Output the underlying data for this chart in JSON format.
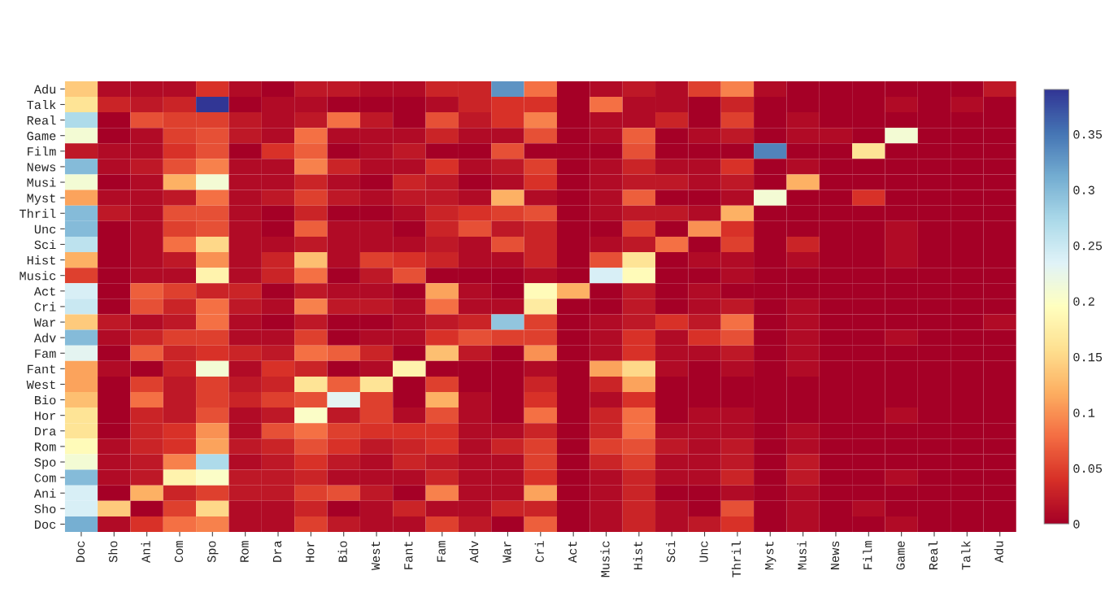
{
  "chart_data": {
    "type": "heatmap",
    "categories": [
      "Doc",
      "Sho",
      "Ani",
      "Com",
      "Spo",
      "Rom",
      "Dra",
      "Hor",
      "Bio",
      "West",
      "Fant",
      "Fam",
      "Adv",
      "War",
      "Cri",
      "Act",
      "Music",
      "Hist",
      "Sci",
      "Unc",
      "Thril",
      "Myst",
      "Musi",
      "News",
      "Film",
      "Game",
      "Real",
      "Talk",
      "Adu"
    ],
    "y_categories": [
      "Adu",
      "Talk",
      "Real",
      "Game",
      "Film",
      "News",
      "Musi",
      "Myst",
      "Thril",
      "Unc",
      "Sci",
      "Hist",
      "Music",
      "Act",
      "Cri",
      "War",
      "Adv",
      "Fam",
      "Fant",
      "West",
      "Bio",
      "Hor",
      "Dra",
      "Rom",
      "Spo",
      "Com",
      "Ani",
      "Sho",
      "Doc"
    ],
    "cells": [
      [
        0.14,
        0.01,
        0.01,
        0.01,
        0.04,
        0.01,
        0,
        0.02,
        0.02,
        0.01,
        0.01,
        0.03,
        0.03,
        0.33,
        0.08,
        0,
        0.01,
        0.02,
        0.01,
        0.05,
        0.09,
        0.01,
        0,
        0,
        0,
        0,
        0,
        0,
        0.02
      ],
      [
        0.16,
        0.03,
        0.02,
        0.03,
        0.39,
        0,
        0.01,
        0.01,
        0,
        0,
        0,
        0.01,
        0.03,
        0.04,
        0.04,
        0,
        0.08,
        0.01,
        0.01,
        0,
        0.03,
        0,
        0,
        0,
        0,
        0.01,
        0,
        0.01,
        0
      ],
      [
        0.27,
        0,
        0.06,
        0.05,
        0.05,
        0.02,
        0.01,
        0.02,
        0.08,
        0.02,
        0,
        0.06,
        0.02,
        0.04,
        0.09,
        0,
        0.01,
        0.01,
        0.03,
        0,
        0.05,
        0,
        0.01,
        0,
        0,
        0,
        0,
        0,
        0
      ],
      [
        0.21,
        0,
        0.01,
        0.05,
        0.06,
        0.02,
        0.01,
        0.08,
        0.01,
        0.01,
        0.01,
        0.03,
        0.01,
        0.01,
        0.06,
        0,
        0.01,
        0.07,
        0,
        0.01,
        0.02,
        0,
        0.01,
        0.01,
        0,
        0.21,
        0,
        0,
        0
      ],
      [
        0.02,
        0.01,
        0.01,
        0.04,
        0.06,
        0,
        0.04,
        0.07,
        0,
        0.01,
        0.02,
        0,
        0,
        0.06,
        0,
        0,
        0,
        0.06,
        0,
        0,
        0,
        0.34,
        0,
        0,
        0.16,
        0,
        0,
        0,
        0
      ],
      [
        0.3,
        0.01,
        0.02,
        0.06,
        0.09,
        0.01,
        0.01,
        0.09,
        0.03,
        0.01,
        0.01,
        0.04,
        0.01,
        0.02,
        0.05,
        0,
        0.01,
        0.03,
        0.01,
        0.01,
        0.04,
        0,
        0.01,
        0,
        0,
        0,
        0,
        0,
        0
      ],
      [
        0.21,
        0,
        0.01,
        0.12,
        0.21,
        0.01,
        0.01,
        0.03,
        0.01,
        0,
        0.03,
        0.02,
        0,
        0.01,
        0.04,
        0,
        0.01,
        0.02,
        0.02,
        0.01,
        0.02,
        0,
        0.12,
        0,
        0,
        0,
        0,
        0,
        0
      ],
      [
        0.11,
        0.01,
        0.01,
        0.02,
        0.08,
        0.01,
        0.02,
        0.05,
        0.02,
        0.01,
        0.02,
        0.02,
        0.01,
        0.12,
        0.01,
        0,
        0.01,
        0.07,
        0,
        0,
        0.01,
        0.21,
        0,
        0,
        0.04,
        0,
        0,
        0,
        0
      ],
      [
        0.3,
        0.02,
        0.01,
        0.06,
        0.06,
        0.01,
        0,
        0.03,
        0,
        0,
        0.01,
        0.03,
        0.04,
        0.05,
        0.06,
        0,
        0.01,
        0.02,
        0.02,
        0.01,
        0.12,
        0,
        0,
        0,
        0,
        0,
        0,
        0,
        0
      ],
      [
        0.3,
        0,
        0.01,
        0.05,
        0.06,
        0.01,
        0,
        0.07,
        0.01,
        0.01,
        0,
        0.03,
        0.06,
        0.02,
        0.03,
        0,
        0,
        0.05,
        0,
        0.1,
        0.04,
        0,
        0,
        0,
        0,
        0.01,
        0,
        0,
        0
      ],
      [
        0.26,
        0,
        0.01,
        0.08,
        0.15,
        0.01,
        0.01,
        0.02,
        0.01,
        0.01,
        0.01,
        0.02,
        0.01,
        0.06,
        0.03,
        0,
        0.01,
        0.02,
        0.08,
        0,
        0.05,
        0,
        0.03,
        0,
        0,
        0.01,
        0,
        0,
        0
      ],
      [
        0.12,
        0,
        0.01,
        0.02,
        0.1,
        0.01,
        0.03,
        0.13,
        0.01,
        0.05,
        0.04,
        0.03,
        0.01,
        0.01,
        0.03,
        0,
        0.06,
        0.16,
        0,
        0.01,
        0.01,
        0,
        0.01,
        0,
        0,
        0.01,
        0,
        0,
        0
      ],
      [
        0.05,
        0,
        0.01,
        0.01,
        0.18,
        0.01,
        0.03,
        0.08,
        0,
        0.02,
        0.06,
        0,
        0,
        0,
        0.01,
        0,
        0.24,
        0.19,
        0,
        0,
        0.01,
        0,
        0,
        0,
        0,
        0,
        0,
        0,
        0
      ],
      [
        0.24,
        0,
        0.07,
        0.05,
        0.03,
        0.03,
        0,
        0.02,
        0.01,
        0.01,
        0,
        0.11,
        0.01,
        0,
        0.19,
        0.12,
        0,
        0.02,
        0,
        0.01,
        0,
        0,
        0,
        0,
        0,
        0,
        0,
        0,
        0
      ],
      [
        0.25,
        0,
        0.06,
        0.03,
        0.08,
        0.02,
        0.01,
        0.09,
        0.02,
        0.02,
        0.01,
        0.08,
        0.01,
        0.01,
        0.17,
        0,
        0,
        0.02,
        0,
        0.01,
        0.02,
        0,
        0.01,
        0,
        0,
        0,
        0,
        0,
        0
      ],
      [
        0.14,
        0.02,
        0.01,
        0.02,
        0.08,
        0.01,
        0,
        0.02,
        0,
        0,
        0.01,
        0.02,
        0.03,
        0.29,
        0.05,
        0,
        0.01,
        0.02,
        0.04,
        0.02,
        0.08,
        0,
        0.01,
        0,
        0,
        0,
        0,
        0,
        0.01
      ],
      [
        0.3,
        0.01,
        0.03,
        0.05,
        0.05,
        0.01,
        0.01,
        0.05,
        0,
        0.01,
        0.01,
        0.04,
        0.06,
        0.05,
        0.05,
        0,
        0.01,
        0.04,
        0.01,
        0.04,
        0.06,
        0,
        0.01,
        0,
        0,
        0.01,
        0,
        0,
        0
      ],
      [
        0.23,
        0,
        0.07,
        0.03,
        0.04,
        0.03,
        0.02,
        0.08,
        0.07,
        0.03,
        0,
        0.13,
        0.02,
        0,
        0.1,
        0,
        0.01,
        0.04,
        0.01,
        0.01,
        0.02,
        0,
        0.01,
        0,
        0,
        0,
        0,
        0,
        0
      ],
      [
        0.11,
        0.01,
        0,
        0.03,
        0.21,
        0.01,
        0.04,
        0.03,
        0,
        0.01,
        0.18,
        0,
        0,
        0,
        0.01,
        0,
        0.11,
        0.15,
        0.01,
        0,
        0.01,
        0,
        0.01,
        0,
        0,
        0,
        0,
        0,
        0
      ],
      [
        0.11,
        0,
        0.05,
        0.02,
        0.05,
        0.02,
        0.03,
        0.16,
        0.07,
        0.16,
        0,
        0.05,
        0,
        0,
        0.03,
        0,
        0.03,
        0.11,
        0,
        0,
        0,
        0,
        0,
        0,
        0,
        0,
        0,
        0,
        0
      ],
      [
        0.13,
        0,
        0.08,
        0.02,
        0.05,
        0.03,
        0.05,
        0.06,
        0.23,
        0.05,
        0,
        0.12,
        0.01,
        0,
        0.04,
        0,
        0.01,
        0.04,
        0,
        0,
        0,
        0,
        0,
        0,
        0,
        0,
        0,
        0,
        0
      ],
      [
        0.16,
        0,
        0.03,
        0.02,
        0.06,
        0.01,
        0.02,
        0.2,
        0.02,
        0.05,
        0.01,
        0.06,
        0.01,
        0,
        0.08,
        0,
        0.03,
        0.08,
        0,
        0.01,
        0.01,
        0,
        0,
        0,
        0,
        0.01,
        0,
        0,
        0
      ],
      [
        0.16,
        0,
        0.03,
        0.04,
        0.1,
        0.01,
        0.06,
        0.08,
        0.05,
        0.04,
        0.04,
        0.04,
        0.01,
        0.01,
        0.03,
        0,
        0.03,
        0.08,
        0.01,
        0.01,
        0.01,
        0,
        0.01,
        0,
        0,
        0,
        0,
        0,
        0
      ],
      [
        0.19,
        0.01,
        0.03,
        0.04,
        0.11,
        0.02,
        0.03,
        0.06,
        0.04,
        0.02,
        0.03,
        0.04,
        0.01,
        0.03,
        0.05,
        0,
        0.05,
        0.06,
        0.02,
        0.01,
        0.02,
        0,
        0.01,
        0,
        0,
        0,
        0,
        0,
        0
      ],
      [
        0.21,
        0.01,
        0.02,
        0.09,
        0.27,
        0.01,
        0.02,
        0.04,
        0.02,
        0.01,
        0.03,
        0.02,
        0.01,
        0.01,
        0.05,
        0,
        0.03,
        0.05,
        0.01,
        0.01,
        0.02,
        0,
        0.02,
        0,
        0,
        0,
        0,
        0,
        0
      ],
      [
        0.3,
        0.01,
        0.02,
        0.18,
        0.2,
        0.02,
        0.02,
        0.03,
        0.01,
        0.01,
        0.01,
        0.03,
        0.01,
        0.01,
        0.04,
        0,
        0.01,
        0.03,
        0.01,
        0.01,
        0.03,
        0,
        0.02,
        0,
        0,
        0.01,
        0,
        0,
        0
      ],
      [
        0.24,
        0,
        0.12,
        0.03,
        0.05,
        0.02,
        0.02,
        0.05,
        0.06,
        0.02,
        0,
        0.09,
        0.01,
        0.01,
        0.11,
        0,
        0.01,
        0.03,
        0,
        0,
        0.01,
        0,
        0.01,
        0,
        0,
        0,
        0,
        0,
        0
      ],
      [
        0.24,
        0.14,
        0,
        0.05,
        0.15,
        0.01,
        0.01,
        0.03,
        0,
        0.01,
        0.03,
        0.01,
        0.01,
        0.03,
        0.03,
        0,
        0.01,
        0.03,
        0.01,
        0,
        0.06,
        0,
        0.01,
        0,
        0.01,
        0,
        0,
        0,
        0
      ],
      [
        0.31,
        0.01,
        0.04,
        0.08,
        0.09,
        0.01,
        0.01,
        0.05,
        0.02,
        0.01,
        0.01,
        0.05,
        0.02,
        0,
        0.07,
        0,
        0.01,
        0.03,
        0.01,
        0.02,
        0.04,
        0,
        0.01,
        0,
        0,
        0.01,
        0,
        0,
        0
      ]
    ],
    "clim": [
      0,
      0.39
    ],
    "cticks": [
      0,
      0.05,
      0.1,
      0.15,
      0.2,
      0.25,
      0.3,
      0.35
    ],
    "grid": false
  }
}
